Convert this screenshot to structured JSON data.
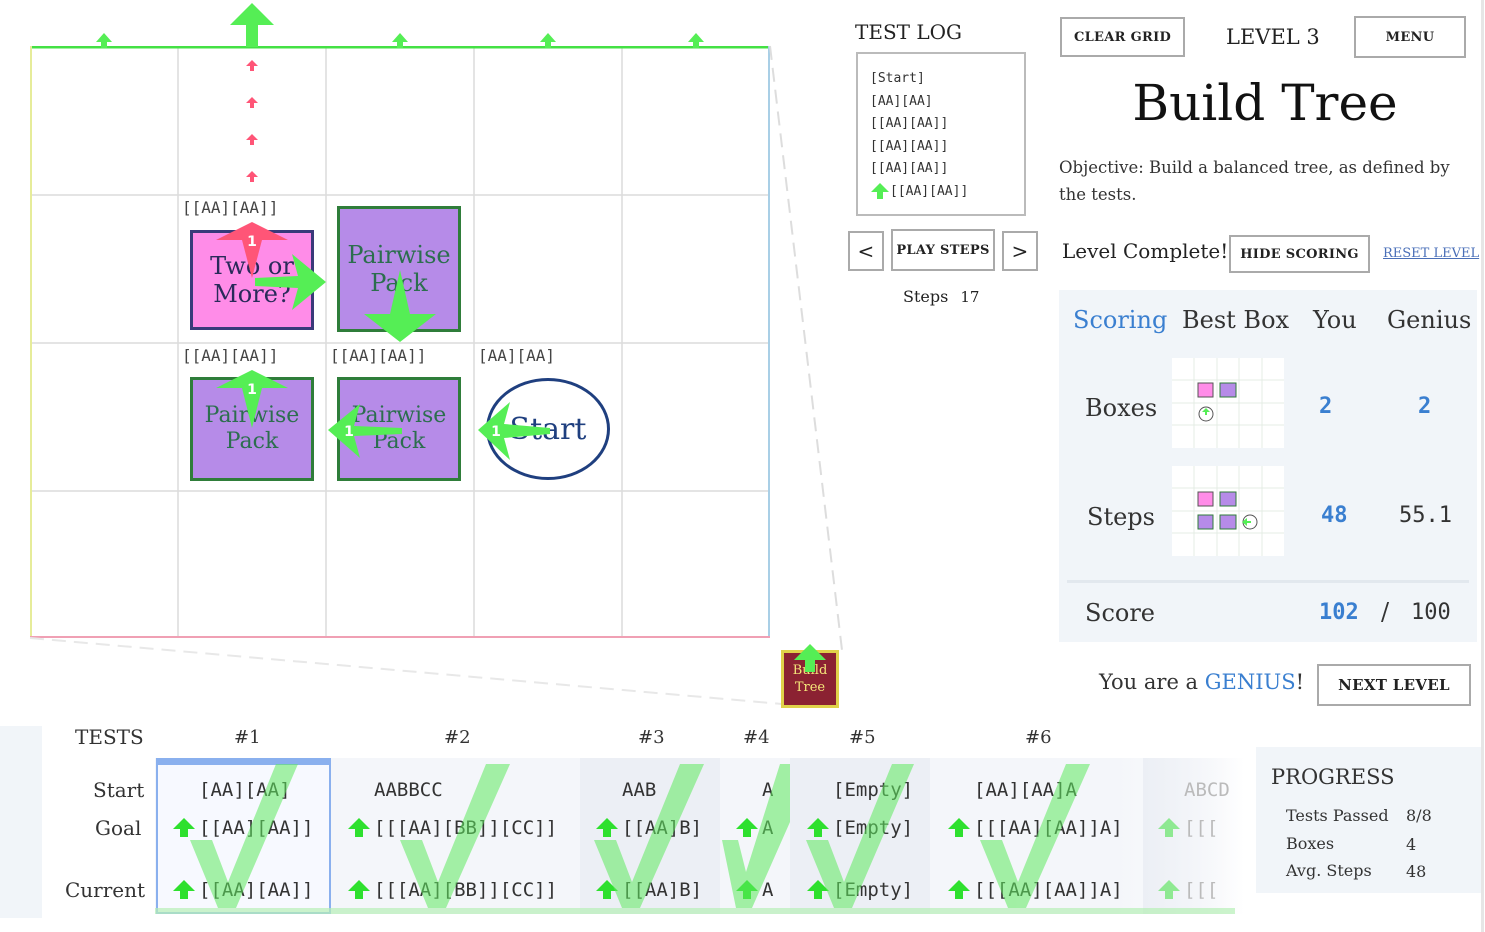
{
  "grid": {
    "cells": [
      {
        "label": "[[AA][AA]]"
      },
      {
        "label": "[[AA][AA]]"
      },
      {
        "label": "[[AA][AA]]"
      },
      {
        "label": "[AA][AA]"
      }
    ],
    "boxes": [
      {
        "text": "Two or\nMore?"
      },
      {
        "text": "Pairwise\nPack"
      },
      {
        "text": "Pairwise\nPack"
      },
      {
        "text": "Pairwise\nPack"
      }
    ],
    "start": "Start",
    "badges": [
      "1",
      "1",
      "1",
      "1"
    ],
    "colors": {
      "green": "#55ee55",
      "red": "#ff5577",
      "purple": "#b68be8",
      "pink": "#ff8ce8"
    }
  },
  "mini_box": {
    "text": "Build\nTree"
  },
  "test_log": {
    "title": "TEST LOG",
    "lines": [
      "[Start]",
      "[AA][AA]",
      "[[AA][AA]]",
      "[[AA][AA]]",
      "[[AA][AA]]",
      "[[AA][AA]]"
    ]
  },
  "playback": {
    "prev": "<",
    "play": "PLAY STEPS",
    "next": ">",
    "steps_label": "Steps",
    "steps_value": "17"
  },
  "header": {
    "clear": "CLEAR GRID",
    "level": "LEVEL 3",
    "menu": "MENU"
  },
  "title": "Build Tree",
  "objective": "Objective: Build a balanced tree, as defined by the tests.",
  "status": {
    "complete": "Level Complete!",
    "hide_scoring": "HIDE SCORING",
    "reset": "RESET LEVEL"
  },
  "scoring": {
    "headers": [
      "Scoring",
      "Best Box",
      "You",
      "Genius"
    ],
    "rows": [
      {
        "label": "Boxes",
        "you": "2",
        "genius": "2"
      },
      {
        "label": "Steps",
        "you": "48",
        "genius": "55.1"
      }
    ],
    "score": {
      "label": "Score",
      "you": "102",
      "sep": "/",
      "max": "100"
    }
  },
  "genius_msg": {
    "pre": "You are a ",
    "word": "GENIUS",
    "post": "!"
  },
  "next_level": "NEXT LEVEL",
  "tests": {
    "label": "TESTS",
    "row_labels": [
      "Start",
      "Goal",
      "Current"
    ],
    "items": [
      {
        "num": "#1",
        "start": "[AA][AA]",
        "goal": "[[AA][AA]]",
        "current": "[[AA][AA]]"
      },
      {
        "num": "#2",
        "start": "AABBCC",
        "goal": "[[[AA][BB]][CC]]",
        "current": "[[[AA][BB]][CC]]"
      },
      {
        "num": "#3",
        "start": "AAB",
        "goal": "[[AA]B]",
        "current": "[[AA]B]"
      },
      {
        "num": "#4",
        "start": "A",
        "goal": "A",
        "current": "A"
      },
      {
        "num": "#5",
        "start": "[Empty]",
        "goal": "[Empty]",
        "current": "[Empty]"
      },
      {
        "num": "#6",
        "start": "[AA][AA]A",
        "goal": "[[[AA][AA]]A]",
        "current": "[[[AA][AA]]A]"
      },
      {
        "num": "",
        "start": "ABCD",
        "goal": "[[[",
        "current": "[[["
      }
    ]
  },
  "progress": {
    "title": "PROGRESS",
    "rows": [
      {
        "label": "Tests Passed",
        "value": "8/8"
      },
      {
        "label": "Boxes",
        "value": "4"
      },
      {
        "label": "Avg. Steps",
        "value": "48"
      }
    ]
  }
}
